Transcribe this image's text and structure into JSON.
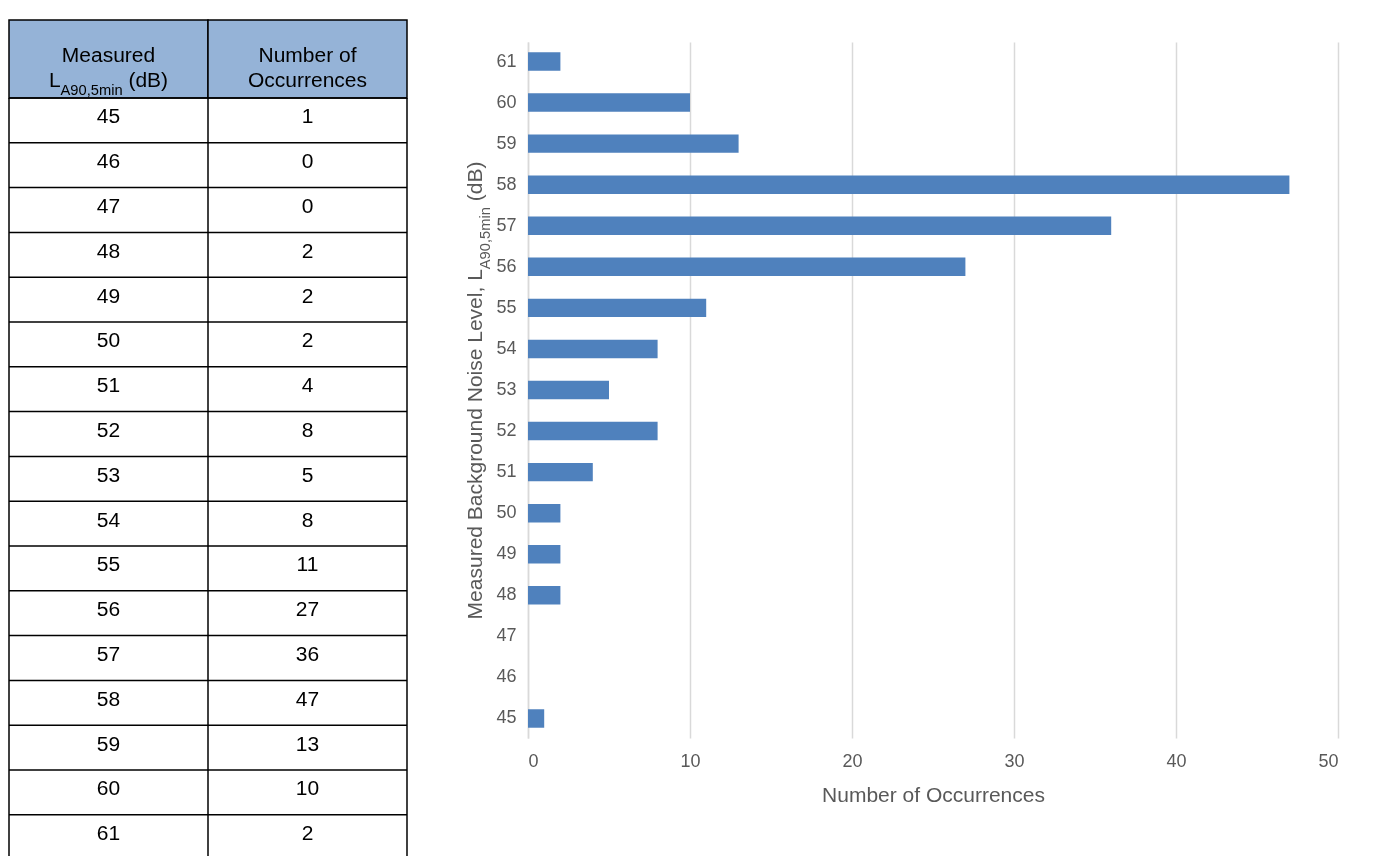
{
  "chart_data": [
    {
      "type": "heatmap",
      "categories": [
        "Number of Occurrences"
      ],
      "y_categories": [
        "45",
        "46",
        "47",
        "48",
        "49",
        "50",
        "51",
        "52",
        "53",
        "54",
        "55",
        "56",
        "57",
        "58",
        "59",
        "60",
        "61"
      ],
      "cells": [
        [
          1
        ],
        [
          0
        ],
        [
          0
        ],
        [
          2
        ],
        [
          2
        ],
        [
          2
        ],
        [
          4
        ],
        [
          8
        ],
        [
          5
        ],
        [
          8
        ],
        [
          11
        ],
        [
          27
        ],
        [
          36
        ],
        [
          47
        ],
        [
          13
        ],
        [
          10
        ],
        [
          2
        ]
      ],
      "ylabel": "Measured L$_{A90,5min}$ (dB)",
      "data_labels": true
    },
    {
      "type": "bar",
      "orientation": "horizontal",
      "categories": [
        "61",
        "60",
        "59",
        "58",
        "57",
        "56",
        "55",
        "54",
        "53",
        "52",
        "51",
        "50",
        "49",
        "48",
        "47",
        "46",
        "45"
      ],
      "values": [
        2,
        10,
        13,
        47,
        36,
        27,
        11,
        8,
        5,
        8,
        4,
        2,
        2,
        2,
        0,
        0,
        1
      ],
      "color": "#4f81bd",
      "xlim": [
        0,
        50
      ],
      "xticks": [
        0,
        10,
        20,
        30,
        40,
        50
      ],
      "xlabel": "Number of Occurrences",
      "ylabel": "Measured Background Noise Level, L$_{A90,5min}$ (dB)",
      "grid": "x"
    }
  ]
}
